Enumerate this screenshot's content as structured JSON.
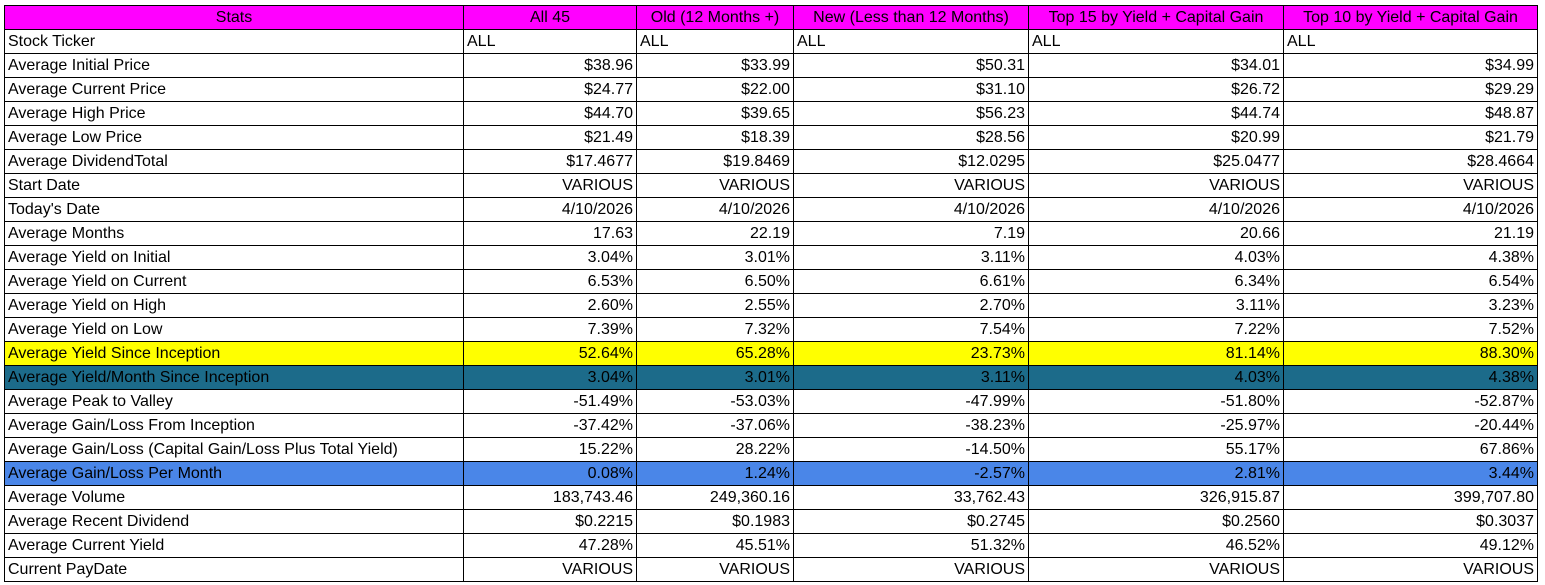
{
  "header": {
    "stats_label": "Stats",
    "columns": [
      "All 45",
      "Old (12 Months +)",
      "New (Less than 12 Months)",
      "Top 15 by Yield + Capital Gain",
      "Top 10 by Yield + Capital Gain"
    ]
  },
  "rows": [
    {
      "label": "Stock Ticker",
      "align": "left",
      "values": [
        "ALL",
        "ALL",
        "ALL",
        "ALL",
        "ALL"
      ]
    },
    {
      "label": "Average Initial Price",
      "values": [
        "$38.96",
        "$33.99",
        "$50.31",
        "$34.01",
        "$34.99"
      ]
    },
    {
      "label": "Average Current Price",
      "values": [
        "$24.77",
        "$22.00",
        "$31.10",
        "$26.72",
        "$29.29"
      ]
    },
    {
      "label": "Average High Price",
      "values": [
        "$44.70",
        "$39.65",
        "$56.23",
        "$44.74",
        "$48.87"
      ]
    },
    {
      "label": "Average Low Price",
      "values": [
        "$21.49",
        "$18.39",
        "$28.56",
        "$20.99",
        "$21.79"
      ]
    },
    {
      "label": "Average DividendTotal",
      "values": [
        "$17.4677",
        "$19.8469",
        "$12.0295",
        "$25.0477",
        "$28.4664"
      ]
    },
    {
      "label": "Start Date",
      "values": [
        "VARIOUS",
        "VARIOUS",
        "VARIOUS",
        "VARIOUS",
        "VARIOUS"
      ]
    },
    {
      "label": "Today's Date",
      "values": [
        "4/10/2026",
        "4/10/2026",
        "4/10/2026",
        "4/10/2026",
        "4/10/2026"
      ]
    },
    {
      "label": "Average Months",
      "values": [
        "17.63",
        "22.19",
        "7.19",
        "20.66",
        "21.19"
      ]
    },
    {
      "label": "Average Yield on Initial",
      "values": [
        "3.04%",
        "3.01%",
        "3.11%",
        "4.03%",
        "4.38%"
      ]
    },
    {
      "label": "Average Yield on Current",
      "values": [
        "6.53%",
        "6.50%",
        "6.61%",
        "6.34%",
        "6.54%"
      ]
    },
    {
      "label": "Average Yield on High",
      "values": [
        "2.60%",
        "2.55%",
        "2.70%",
        "3.11%",
        "3.23%"
      ]
    },
    {
      "label": "Average Yield on Low",
      "values": [
        "7.39%",
        "7.32%",
        "7.54%",
        "7.22%",
        "7.52%"
      ]
    },
    {
      "label": "Average Yield Since Inception",
      "highlight": "yellow",
      "values": [
        "52.64%",
        "65.28%",
        "23.73%",
        "81.14%",
        "88.30%"
      ]
    },
    {
      "label": "Average Yield/Month Since Inception",
      "highlight": "teal",
      "values": [
        "3.04%",
        "3.01%",
        "3.11%",
        "4.03%",
        "4.38%"
      ]
    },
    {
      "label": "Average Peak to Valley",
      "values": [
        "-51.49%",
        "-53.03%",
        "-47.99%",
        "-51.80%",
        "-52.87%"
      ]
    },
    {
      "label": "Average Gain/Loss From Inception",
      "values": [
        "-37.42%",
        "-37.06%",
        "-38.23%",
        "-25.97%",
        "-20.44%"
      ]
    },
    {
      "label": "Average Gain/Loss (Capital Gain/Loss Plus Total Yield)",
      "values": [
        "15.22%",
        "28.22%",
        "-14.50%",
        "55.17%",
        "67.86%"
      ]
    },
    {
      "label": "Average Gain/Loss Per Month",
      "highlight": "blue",
      "values": [
        "0.08%",
        "1.24%",
        "-2.57%",
        "2.81%",
        "3.44%"
      ]
    },
    {
      "label": "Average Volume",
      "values": [
        "183,743.46",
        "249,360.16",
        "33,762.43",
        "326,915.87",
        "399,707.80"
      ]
    },
    {
      "label": "Average Recent Dividend",
      "values": [
        "$0.2215",
        "$0.1983",
        "$0.2745",
        "$0.2560",
        "$0.3037"
      ]
    },
    {
      "label": "Average Current Yield",
      "values": [
        "47.28%",
        "45.51%",
        "51.32%",
        "46.52%",
        "49.12%"
      ]
    },
    {
      "label": "Current PayDate",
      "values": [
        "VARIOUS",
        "VARIOUS",
        "VARIOUS",
        "VARIOUS",
        "VARIOUS"
      ]
    }
  ],
  "colors": {
    "header_bg": "#ff00ff",
    "yellow": "#ffff00",
    "teal": "#1c6b8a",
    "blue": "#4a86e8"
  }
}
